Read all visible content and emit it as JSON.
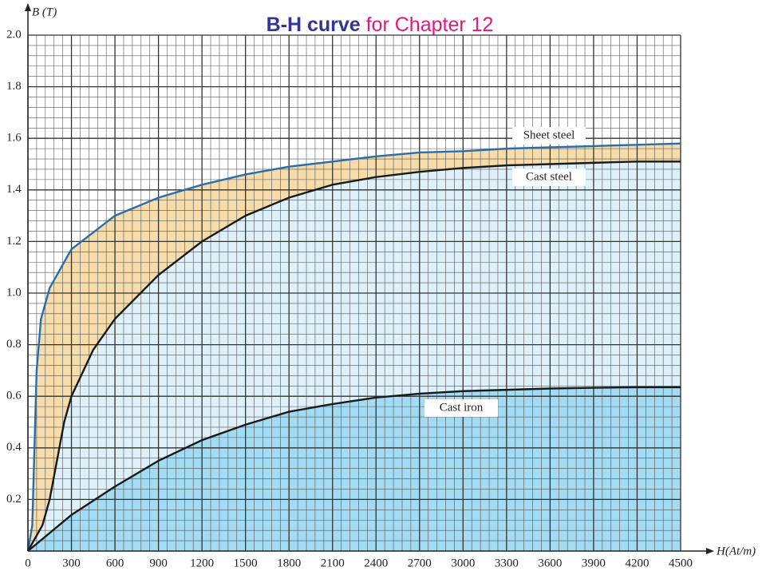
{
  "chart_data": {
    "type": "area-line",
    "title_parts": [
      "B-H curve",
      "for Chapter 12"
    ],
    "x_label": "H(At/m)",
    "y_label": "B (T)",
    "xlim": [
      0,
      4500
    ],
    "ylim": [
      0,
      2
    ],
    "xticks": [
      0,
      300,
      600,
      900,
      1200,
      1500,
      1800,
      2100,
      2400,
      2700,
      3000,
      3300,
      3600,
      3900,
      4200,
      4500
    ],
    "yticks": [
      0.2,
      0.4,
      0.6,
      0.8,
      {
        "value": 1,
        "label": "1.0"
      },
      1.2,
      1.4,
      1.6,
      1.8,
      {
        "value": 2,
        "label": "2.0"
      }
    ],
    "grid": true,
    "minor_divisions": 5,
    "series": [
      {
        "name": "Sheet steel",
        "color": "#2a6ea8",
        "fill": "#f5dcaa",
        "x": [
          0,
          30,
          50,
          60,
          90,
          150,
          300,
          600,
          900,
          1200,
          1500,
          1800,
          2100,
          2400,
          2700,
          3000,
          3300,
          3600,
          3900,
          4200,
          4500
        ],
        "values": [
          0,
          0.1,
          0.5,
          0.7,
          0.9,
          1.02,
          1.17,
          1.3,
          1.37,
          1.42,
          1.46,
          1.49,
          1.51,
          1.53,
          1.545,
          1.55,
          1.56,
          1.565,
          1.57,
          1.575,
          1.58
        ]
      },
      {
        "name": "Cast steel",
        "color": "#1a1a1a",
        "fill": "#def1fa",
        "x": [
          0,
          100,
          150,
          200,
          250,
          300,
          450,
          600,
          900,
          1200,
          1500,
          1800,
          2100,
          2400,
          2700,
          3000,
          3300,
          3600,
          3900,
          4200,
          4500
        ],
        "values": [
          0,
          0.1,
          0.2,
          0.35,
          0.5,
          0.6,
          0.78,
          0.9,
          1.07,
          1.2,
          1.3,
          1.37,
          1.42,
          1.45,
          1.47,
          1.485,
          1.495,
          1.5,
          1.505,
          1.51,
          1.51
        ]
      },
      {
        "name": "Cast iron",
        "color": "#1a1a1a",
        "fill": "#a3dbf3",
        "x": [
          0,
          300,
          600,
          900,
          1200,
          1500,
          1800,
          2100,
          2400,
          2700,
          3000,
          3300,
          3600,
          3900,
          4200,
          4500
        ],
        "values": [
          0,
          0.14,
          0.25,
          0.35,
          0.43,
          0.49,
          0.54,
          0.57,
          0.595,
          0.61,
          0.62,
          0.625,
          0.63,
          0.633,
          0.635,
          0.635
        ]
      }
    ]
  }
}
